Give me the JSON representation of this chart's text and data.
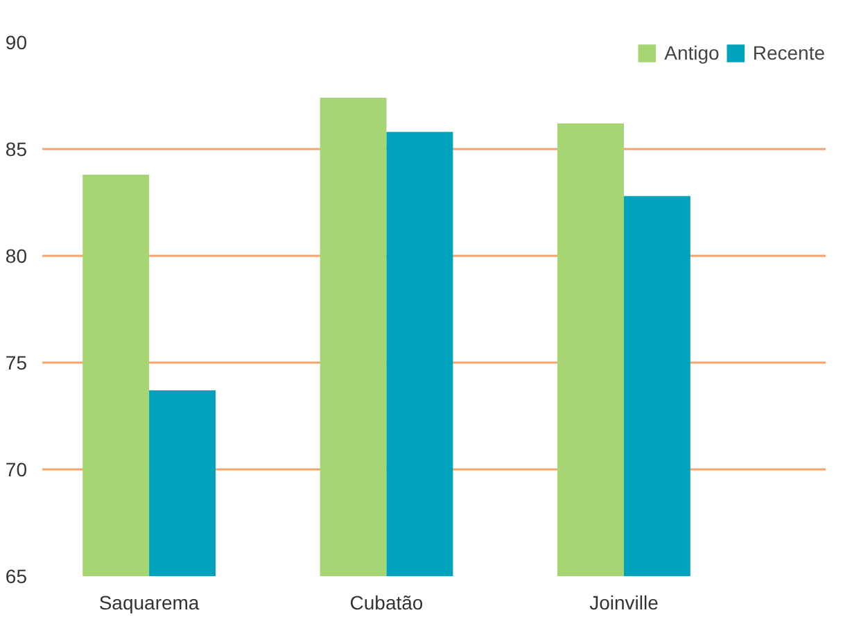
{
  "chart_data": {
    "type": "bar",
    "categories": [
      "Saquarema",
      "Cubatão",
      "Joinville"
    ],
    "series": [
      {
        "name": "Antigo",
        "color": "#a6d574",
        "values": [
          83.8,
          87.4,
          86.2
        ]
      },
      {
        "name": "Recente",
        "color": "#00a3bb",
        "values": [
          73.7,
          85.8,
          82.8
        ]
      }
    ],
    "ylim": [
      65,
      90
    ],
    "yticks": [
      65,
      70,
      75,
      80,
      85,
      90
    ],
    "grid": "y",
    "legend": "top right"
  }
}
